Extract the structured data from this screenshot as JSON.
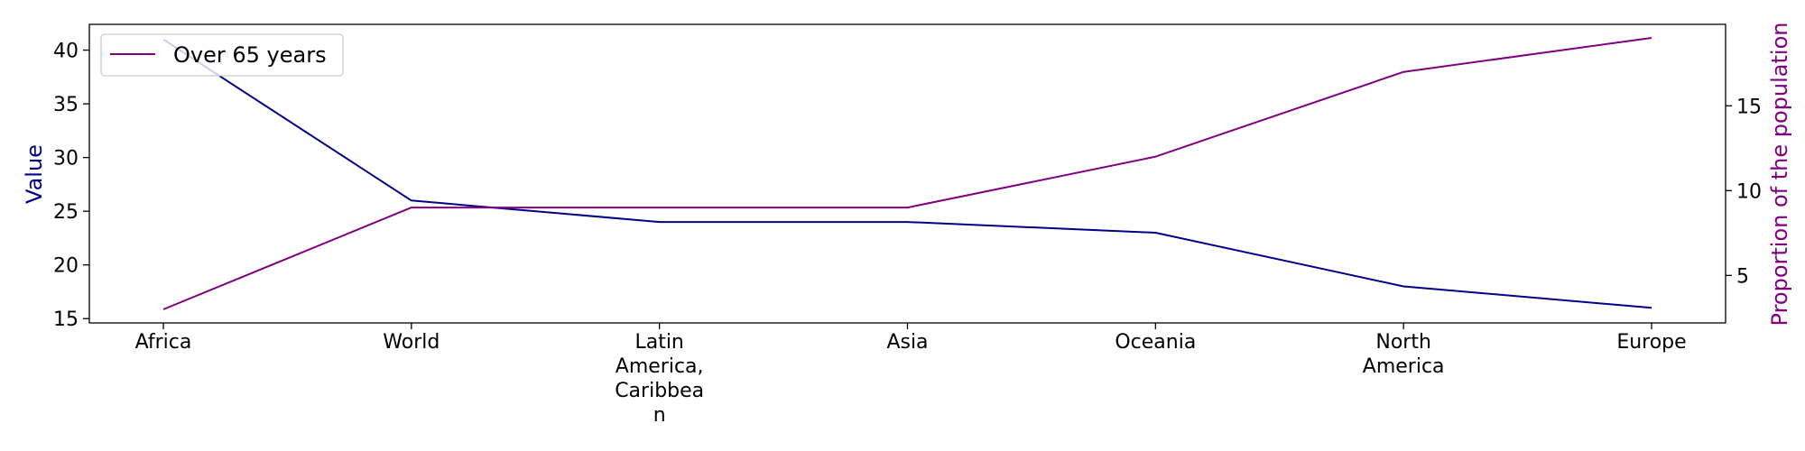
{
  "chart_data": {
    "type": "line",
    "categories": [
      [
        "Africa"
      ],
      [
        "World"
      ],
      [
        "Latin",
        "America,",
        "Caribbea",
        "n"
      ],
      [
        "Asia"
      ],
      [
        "Oceania"
      ],
      [
        "North",
        "America"
      ],
      [
        "Europe"
      ]
    ],
    "series": [
      {
        "name": "",
        "axis": "left",
        "color": "#00008b",
        "values": [
          41,
          26,
          24,
          24,
          23,
          18,
          16
        ]
      },
      {
        "name": "Over 65 years",
        "axis": "right",
        "color": "#800080",
        "values": [
          3,
          9,
          9,
          9,
          12,
          17,
          19
        ]
      }
    ],
    "ylabel": "Value",
    "ylabel_color": "#00008b",
    "y2label": "Proportion of the population",
    "y2label_color": "#800080",
    "ylim": [
      14.6,
      42.4
    ],
    "y2lim": [
      2.2,
      19.8
    ],
    "yticks": [
      15,
      20,
      25,
      30,
      35,
      40
    ],
    "y2ticks": [
      5,
      10,
      15
    ],
    "legend": {
      "position": "top-left",
      "entries": [
        "Over 65 years"
      ]
    },
    "grid": false
  }
}
